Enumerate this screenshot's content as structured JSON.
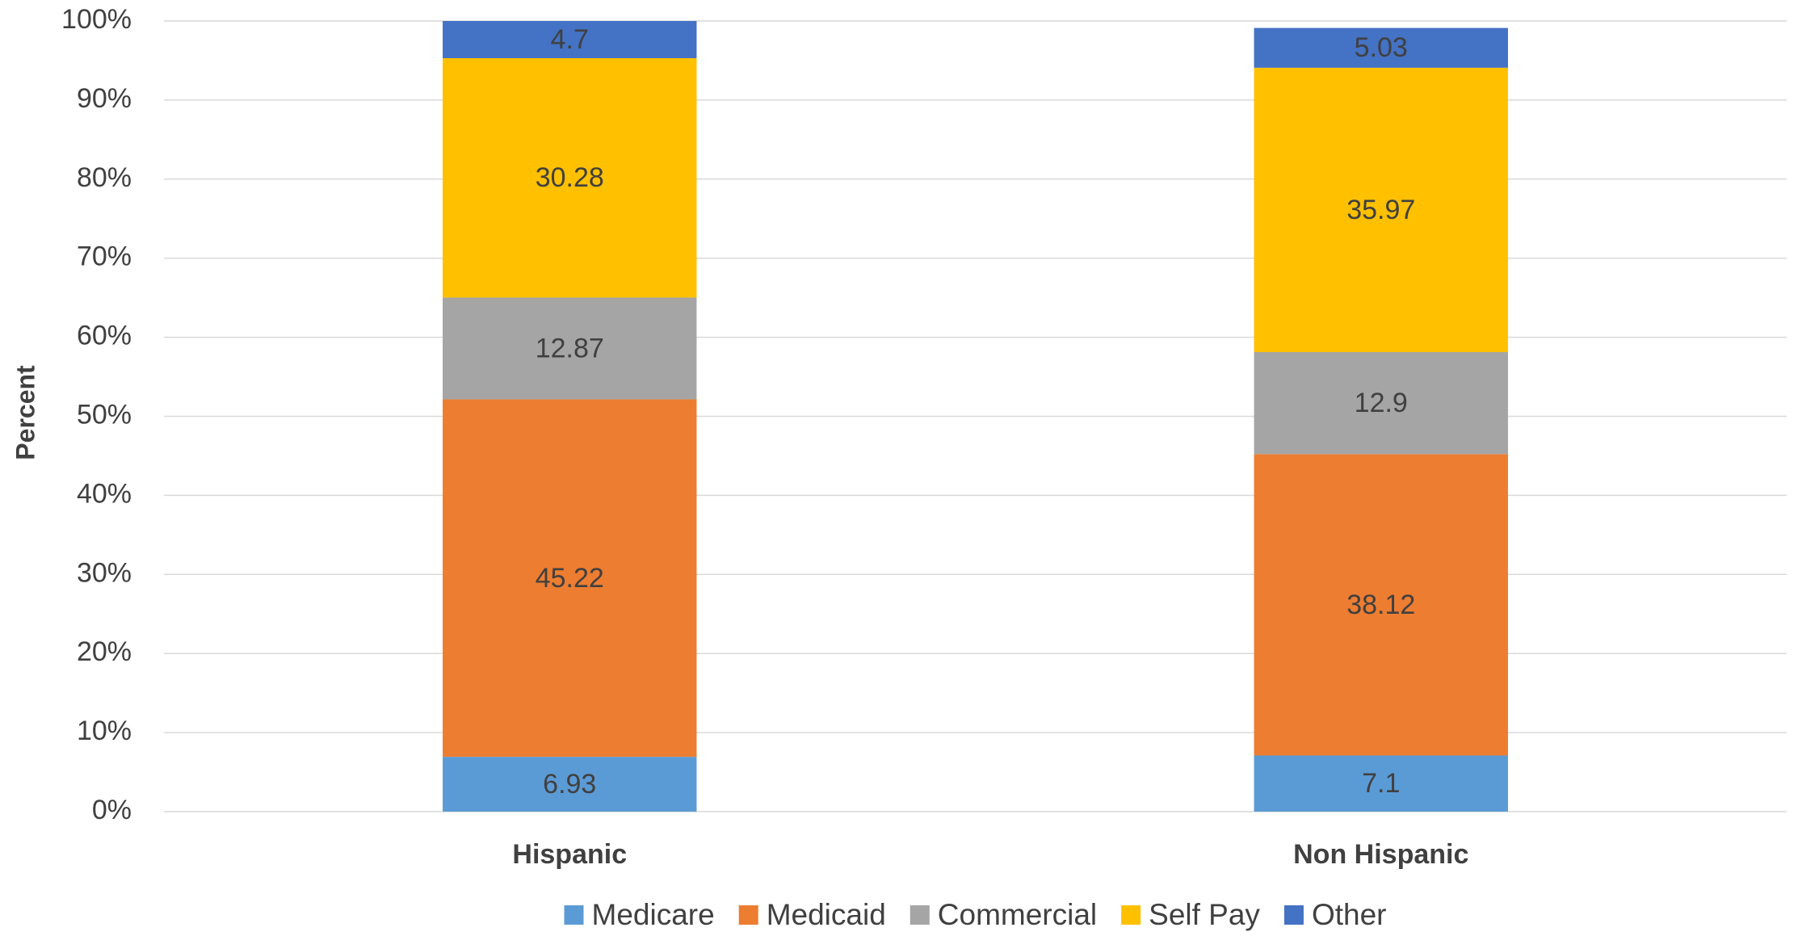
{
  "chart_data": {
    "type": "stacked_bar",
    "ylabel": "Percent",
    "categories": [
      "Hispanic",
      "Non Hispanic"
    ],
    "series": [
      {
        "name": "Medicare",
        "color": "#5b9bd5",
        "values": [
          6.93,
          7.1
        ]
      },
      {
        "name": "Medicaid",
        "color": "#ed7d31",
        "values": [
          45.22,
          38.12
        ]
      },
      {
        "name": "Commercial",
        "color": "#a5a5a5",
        "values": [
          12.87,
          12.9
        ]
      },
      {
        "name": "Self Pay",
        "color": "#ffc000",
        "values": [
          30.28,
          35.97
        ]
      },
      {
        "name": "Other",
        "color": "#4472c4",
        "values": [
          4.7,
          5.03
        ]
      }
    ],
    "ylim": [
      0,
      100
    ],
    "yticks": [
      {
        "value": 0,
        "label": "0%"
      },
      {
        "value": 10,
        "label": "10%"
      },
      {
        "value": 20,
        "label": "20%"
      },
      {
        "value": 30,
        "label": "30%"
      },
      {
        "value": 40,
        "label": "40%"
      },
      {
        "value": 50,
        "label": "50%"
      },
      {
        "value": 60,
        "label": "60%"
      },
      {
        "value": 70,
        "label": "70%"
      },
      {
        "value": 80,
        "label": "80%"
      },
      {
        "value": 90,
        "label": "90%"
      },
      {
        "value": 100,
        "label": "100%"
      }
    ],
    "grid": true,
    "legend": "bottom"
  }
}
